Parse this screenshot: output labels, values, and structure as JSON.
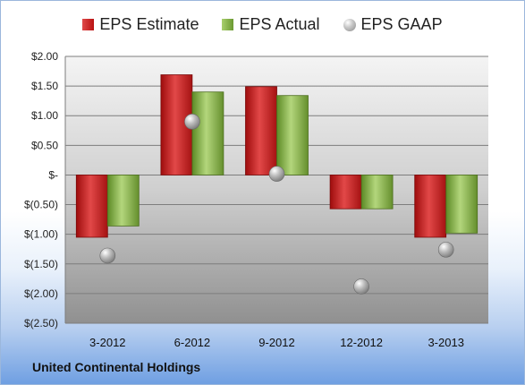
{
  "chart_data": {
    "type": "bar",
    "categories": [
      "3-2012",
      "6-2012",
      "9-2012",
      "12-2012",
      "3-2013"
    ],
    "series": [
      {
        "name": "EPS Estimate",
        "values": [
          -1.05,
          1.69,
          1.49,
          -0.57,
          -1.05
        ],
        "color": "#c41d1d"
      },
      {
        "name": "EPS Actual",
        "values": [
          -0.86,
          1.4,
          1.34,
          -0.57,
          -0.98
        ],
        "color": "#8ab44a"
      },
      {
        "name": "EPS GAAP",
        "values": [
          -1.36,
          0.9,
          0.02,
          -1.88,
          -1.26
        ],
        "color": "#a8a8a8",
        "marker": "circle"
      }
    ],
    "y_ticks": [
      2.0,
      1.5,
      1.0,
      0.5,
      0,
      -0.5,
      -1.0,
      -1.5,
      -2.0,
      -2.5
    ],
    "y_tick_labels": [
      "$2.00",
      "$1.50",
      "$1.00",
      "$0.50",
      "$-",
      "$(0.50)",
      "$(1.00)",
      "$(1.50)",
      "$(2.00)",
      "$(2.50)"
    ],
    "ylim": [
      -2.5,
      2.0
    ],
    "grid": true,
    "legend_position": "top-center",
    "title": "",
    "xlabel": "",
    "ylabel": ""
  },
  "legend": {
    "estimate": "EPS Estimate",
    "actual": "EPS Actual",
    "gaap": "EPS GAAP"
  },
  "footer": {
    "company": "United Continental Holdings"
  }
}
